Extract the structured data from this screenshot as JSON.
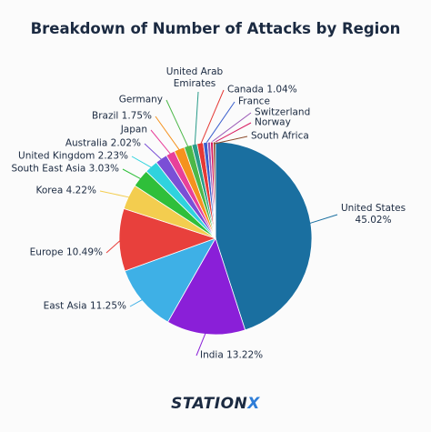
{
  "chart_data": {
    "type": "pie",
    "title": "Breakdown of Number of Attacks by Region",
    "categories": [
      "United States",
      "India",
      "East Asia",
      "Europe",
      "Korea",
      "South East Asia",
      "United Kingdom",
      "Australia",
      "Japan",
      "Brazil",
      "Germany",
      "United Arab Emirates",
      "Canada",
      "France",
      "Switzerland",
      "Norway",
      "South Africa"
    ],
    "values": [
      45.02,
      13.22,
      11.25,
      10.49,
      4.22,
      3.03,
      2.23,
      2.02,
      1.5,
      1.75,
      1.3,
      0.9,
      1.04,
      0.7,
      0.5,
      0.45,
      0.38
    ],
    "value_labels": [
      "45.02%",
      "13.22%",
      "11.25%",
      "10.49%",
      "4.22%",
      "3.03%",
      "2.23%",
      "2.02%",
      null,
      "1.75%",
      null,
      null,
      "1.04%",
      null,
      null,
      null,
      null
    ],
    "colors": [
      "#1a6fa0",
      "#8a1fd8",
      "#3eb0e6",
      "#e8403c",
      "#f3cd4f",
      "#2fbf3a",
      "#2fd3de",
      "#7a4fd6",
      "#e8409a",
      "#f5921e",
      "#4cb848",
      "#2a9c8a",
      "#e53935",
      "#3a5fcd",
      "#9b59b6",
      "#d81b60",
      "#8b4a2a"
    ]
  },
  "logo": {
    "text": "STATION",
    "accent": "X"
  }
}
